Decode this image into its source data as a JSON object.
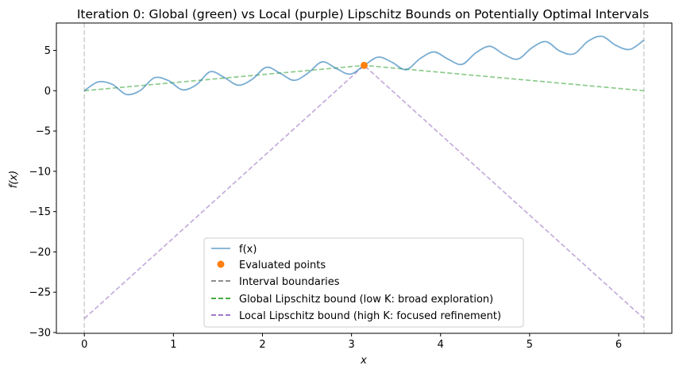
{
  "chart_data": {
    "type": "line",
    "title": "Iteration 0: Global (green) vs Local (purple) Lipschitz Bounds on Potentially Optimal Intervals",
    "xlabel": "x",
    "ylabel": "f(x)",
    "xlim": [
      -0.314,
      6.597
    ],
    "ylim": [
      -30.1,
      8.4
    ],
    "xticks": [
      0,
      1,
      2,
      3,
      4,
      5,
      6
    ],
    "yticks": [
      5,
      0,
      -5,
      -10,
      -15,
      -20,
      -25,
      -30
    ],
    "grid": false,
    "legend_position": "lower center",
    "colors": {
      "function": "#1f77b4",
      "points": "#ff7f0e",
      "boundaries": "#7f7f7f",
      "global": "#2ca02c",
      "local": "#9467bd"
    },
    "function_series": {
      "name": "f(x)",
      "x": [
        0,
        0.157,
        0.314,
        0.471,
        0.628,
        0.785,
        0.942,
        1.1,
        1.257,
        1.414,
        1.571,
        1.728,
        1.885,
        2.042,
        2.199,
        2.356,
        2.513,
        2.67,
        2.827,
        2.985,
        3.142,
        3.299,
        3.456,
        3.613,
        3.77,
        3.927,
        4.084,
        4.241,
        4.398,
        4.555,
        4.712,
        4.869,
        5.027,
        5.184,
        5.341,
        5.498,
        5.655,
        5.812,
        5.969,
        6.126,
        6.283
      ],
      "y": [
        0.0,
        1.1,
        0.79,
        -0.46,
        0.03,
        1.6,
        1.27,
        0.12,
        0.73,
        2.36,
        1.64,
        0.69,
        1.42,
        2.9,
        2.16,
        1.29,
        2.2,
        3.58,
        2.77,
        2.06,
        3.14,
        4.17,
        3.52,
        2.61,
        3.98,
        4.81,
        3.92,
        3.27,
        4.72,
        5.51,
        4.5,
        3.93,
        5.34,
        6.09,
        4.91,
        4.58,
        6.13,
        6.75,
        5.62,
        5.13,
        6.28
      ]
    },
    "evaluated_points": {
      "name": "Evaluated points",
      "x": [
        3.1416
      ],
      "y": [
        3.1416
      ]
    },
    "interval_boundaries": {
      "name": "Interval boundaries",
      "x": [
        0,
        6.2832
      ]
    },
    "global_bound": {
      "name": "Global Lipschitz bound (low K: broad exploration)",
      "x": [
        0,
        3.1416,
        6.2832
      ],
      "y": [
        0.0,
        3.1416,
        0.0
      ]
    },
    "local_bound": {
      "name": "Local Lipschitz bound (high K: focused refinement)",
      "x": [
        0,
        3.1416,
        6.2832
      ],
      "y": [
        -28.27,
        3.1416,
        -28.27
      ]
    }
  }
}
